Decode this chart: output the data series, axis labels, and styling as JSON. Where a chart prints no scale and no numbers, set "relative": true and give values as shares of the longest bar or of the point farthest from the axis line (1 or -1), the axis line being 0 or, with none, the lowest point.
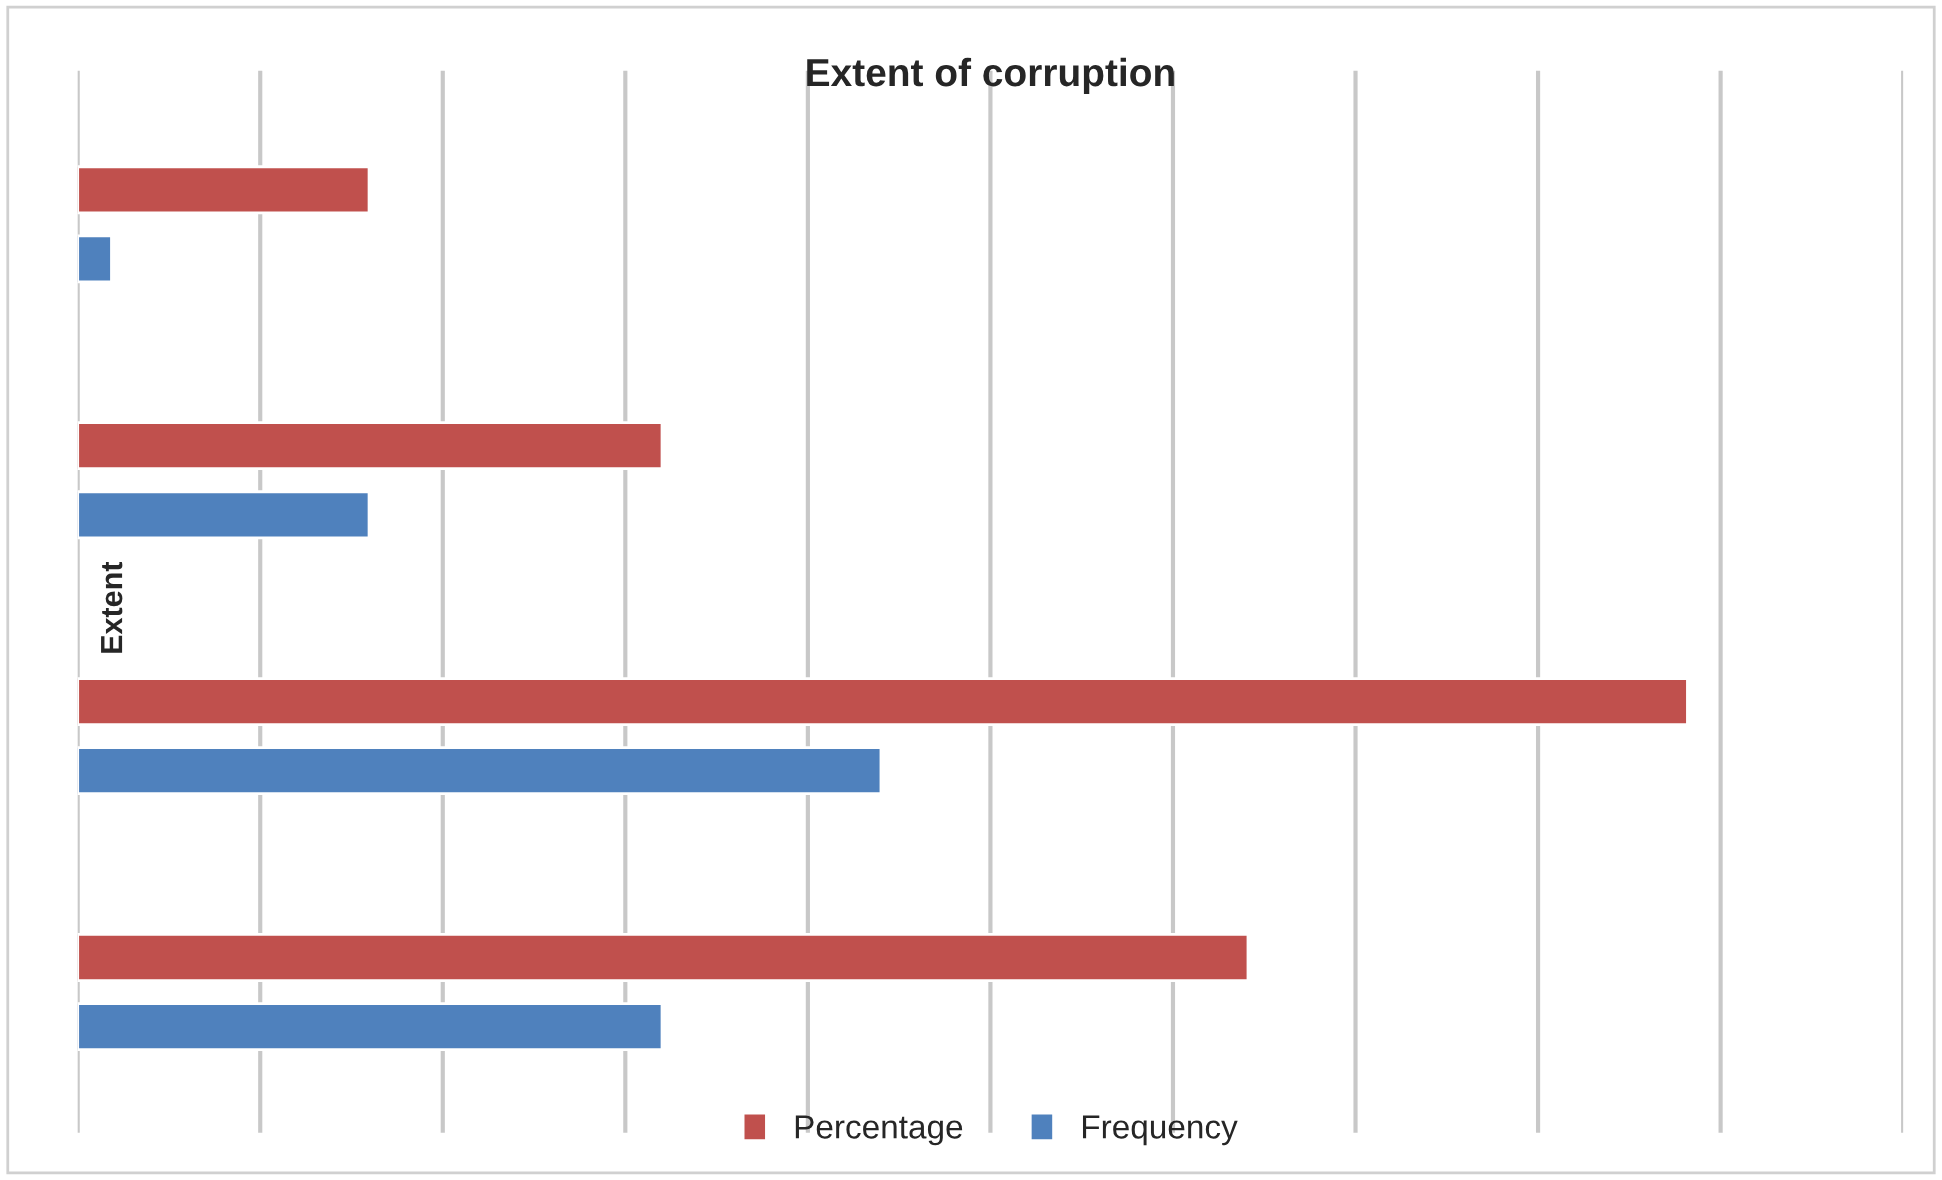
{
  "chart_data": {
    "type": "bar",
    "orientation": "horizontal",
    "title": "Extent of corruption",
    "ylabel": "Extent",
    "relative": true,
    "categories": [
      null,
      null,
      null,
      null
    ],
    "series": [
      {
        "name": "Percentage",
        "color": "#c0504d",
        "values": [
          0.181,
          0.363,
          1,
          0.727
        ]
      },
      {
        "name": "Frequency",
        "color": "#4f81bd",
        "values": [
          0.021,
          0.181,
          0.499,
          0.363
        ]
      }
    ],
    "grid": "x",
    "legend": "bottom",
    "tick_labels": false
  }
}
